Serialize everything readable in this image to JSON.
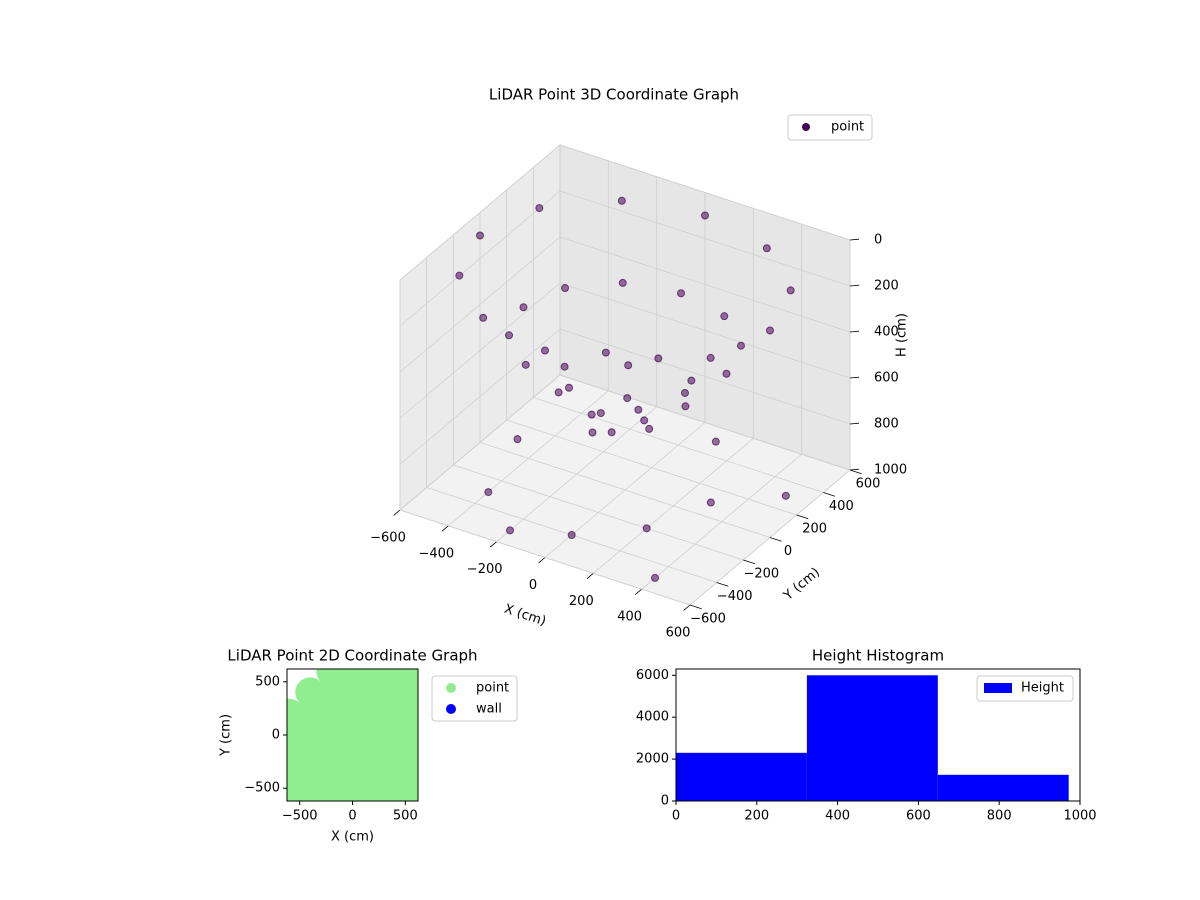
{
  "chart_data": [
    {
      "type": "scatter3d",
      "title": "LiDAR Point 3D Coordinate Graph",
      "xlabel": "X (cm)",
      "ylabel": "Y (cm)",
      "zlabel": "H (cm)",
      "xlim": [
        -600,
        600
      ],
      "ylim": [
        -600,
        600
      ],
      "zlim": [
        1000,
        0
      ],
      "xticks": [
        {
          "value": -600,
          "label": "−600"
        },
        {
          "value": -400,
          "label": "−400"
        },
        {
          "value": -200,
          "label": "−200"
        },
        0,
        200,
        400,
        600
      ],
      "yticks": [
        {
          "value": -600,
          "label": "−600"
        },
        {
          "value": -400,
          "label": "−400"
        },
        {
          "value": -200,
          "label": "−200"
        },
        0,
        200,
        400,
        600
      ],
      "zticks": [
        0,
        200,
        400,
        600,
        800,
        1000
      ],
      "grid": true,
      "legend": "upper right",
      "series": [
        {
          "name": "point",
          "color": "#440154",
          "x": [
            600,
            520,
            300,
            0,
            -300,
            -520,
            -600,
            -520,
            -300,
            0,
            300,
            520,
            420,
            364,
            210,
            0,
            -210,
            -364,
            -420,
            -364,
            -210,
            0,
            210,
            364,
            250,
            177,
            0,
            -177,
            -250,
            -177,
            0,
            177,
            100,
            0,
            -100,
            0,
            -400,
            -200,
            0,
            200,
            400,
            -500,
            -300,
            300,
            500,
            100
          ],
          "y": [
            0,
            300,
            520,
            600,
            520,
            300,
            0,
            -300,
            -520,
            -600,
            -520,
            -300,
            0,
            210,
            364,
            420,
            364,
            210,
            0,
            -210,
            -364,
            -420,
            -364,
            -210,
            0,
            177,
            250,
            177,
            0,
            -177,
            -250,
            -177,
            0,
            100,
            0,
            -100,
            -300,
            -500,
            -400,
            -200,
            -500,
            100,
            300,
            100,
            300,
            500
          ],
          "z": [
            100,
            100,
            100,
            100,
            100,
            100,
            100,
            100,
            100,
            100,
            100,
            100,
            350,
            350,
            350,
            350,
            350,
            350,
            350,
            350,
            350,
            350,
            350,
            350,
            550,
            550,
            550,
            550,
            550,
            550,
            550,
            550,
            700,
            700,
            700,
            700,
            1000,
            1000,
            1000,
            1000,
            1000,
            1000,
            1000,
            1000,
            1000,
            1000
          ]
        }
      ]
    },
    {
      "type": "scatter",
      "title": "LiDAR Point 2D Coordinate Graph",
      "xlabel": "X (cm)",
      "ylabel": "Y (cm)",
      "xlim": [
        -620,
        620
      ],
      "ylim": [
        -620,
        620
      ],
      "xticks": [
        {
          "value": -500,
          "label": "−500"
        },
        0,
        500
      ],
      "yticks": [
        {
          "value": -500,
          "label": "−500"
        },
        0,
        500
      ],
      "legend": "outside upper right",
      "series": [
        {
          "name": "point",
          "color": "#90ee90",
          "x": [
            -200,
            0,
            200,
            400,
            600,
            -400,
            -200,
            0,
            200,
            400,
            600,
            -600,
            -400,
            -200,
            0,
            200,
            400,
            600,
            -600,
            -400,
            -200,
            0,
            200,
            400,
            600,
            -600,
            -400,
            -200,
            0,
            200,
            400,
            600,
            -600,
            -400,
            -200,
            0,
            200,
            400,
            600,
            -600,
            -400,
            -200,
            0,
            200,
            400,
            600
          ],
          "y": [
            600,
            600,
            600,
            600,
            600,
            400,
            400,
            400,
            400,
            400,
            400,
            200,
            200,
            200,
            200,
            200,
            200,
            200,
            0,
            0,
            0,
            0,
            0,
            0,
            0,
            -200,
            -200,
            -200,
            -200,
            -200,
            -200,
            -200,
            -400,
            -400,
            -400,
            -400,
            -400,
            -400,
            -400,
            -600,
            -600,
            -600,
            -600,
            -600,
            -600,
            -600
          ]
        },
        {
          "name": "wall",
          "color": "#0000ff",
          "x": [],
          "y": []
        }
      ]
    },
    {
      "type": "histogram",
      "title": "Height Histogram",
      "name": "Height",
      "color": "#0000ff",
      "bins": [
        0,
        324,
        648,
        972
      ],
      "counts": [
        2300,
        6000,
        1250
      ],
      "xlim": [
        0,
        1000
      ],
      "ylim": [
        0,
        6300
      ],
      "xticks": [
        0,
        200,
        400,
        600,
        800,
        1000
      ],
      "yticks": [
        0,
        2000,
        4000,
        6000
      ],
      "legend": "upper right"
    }
  ]
}
